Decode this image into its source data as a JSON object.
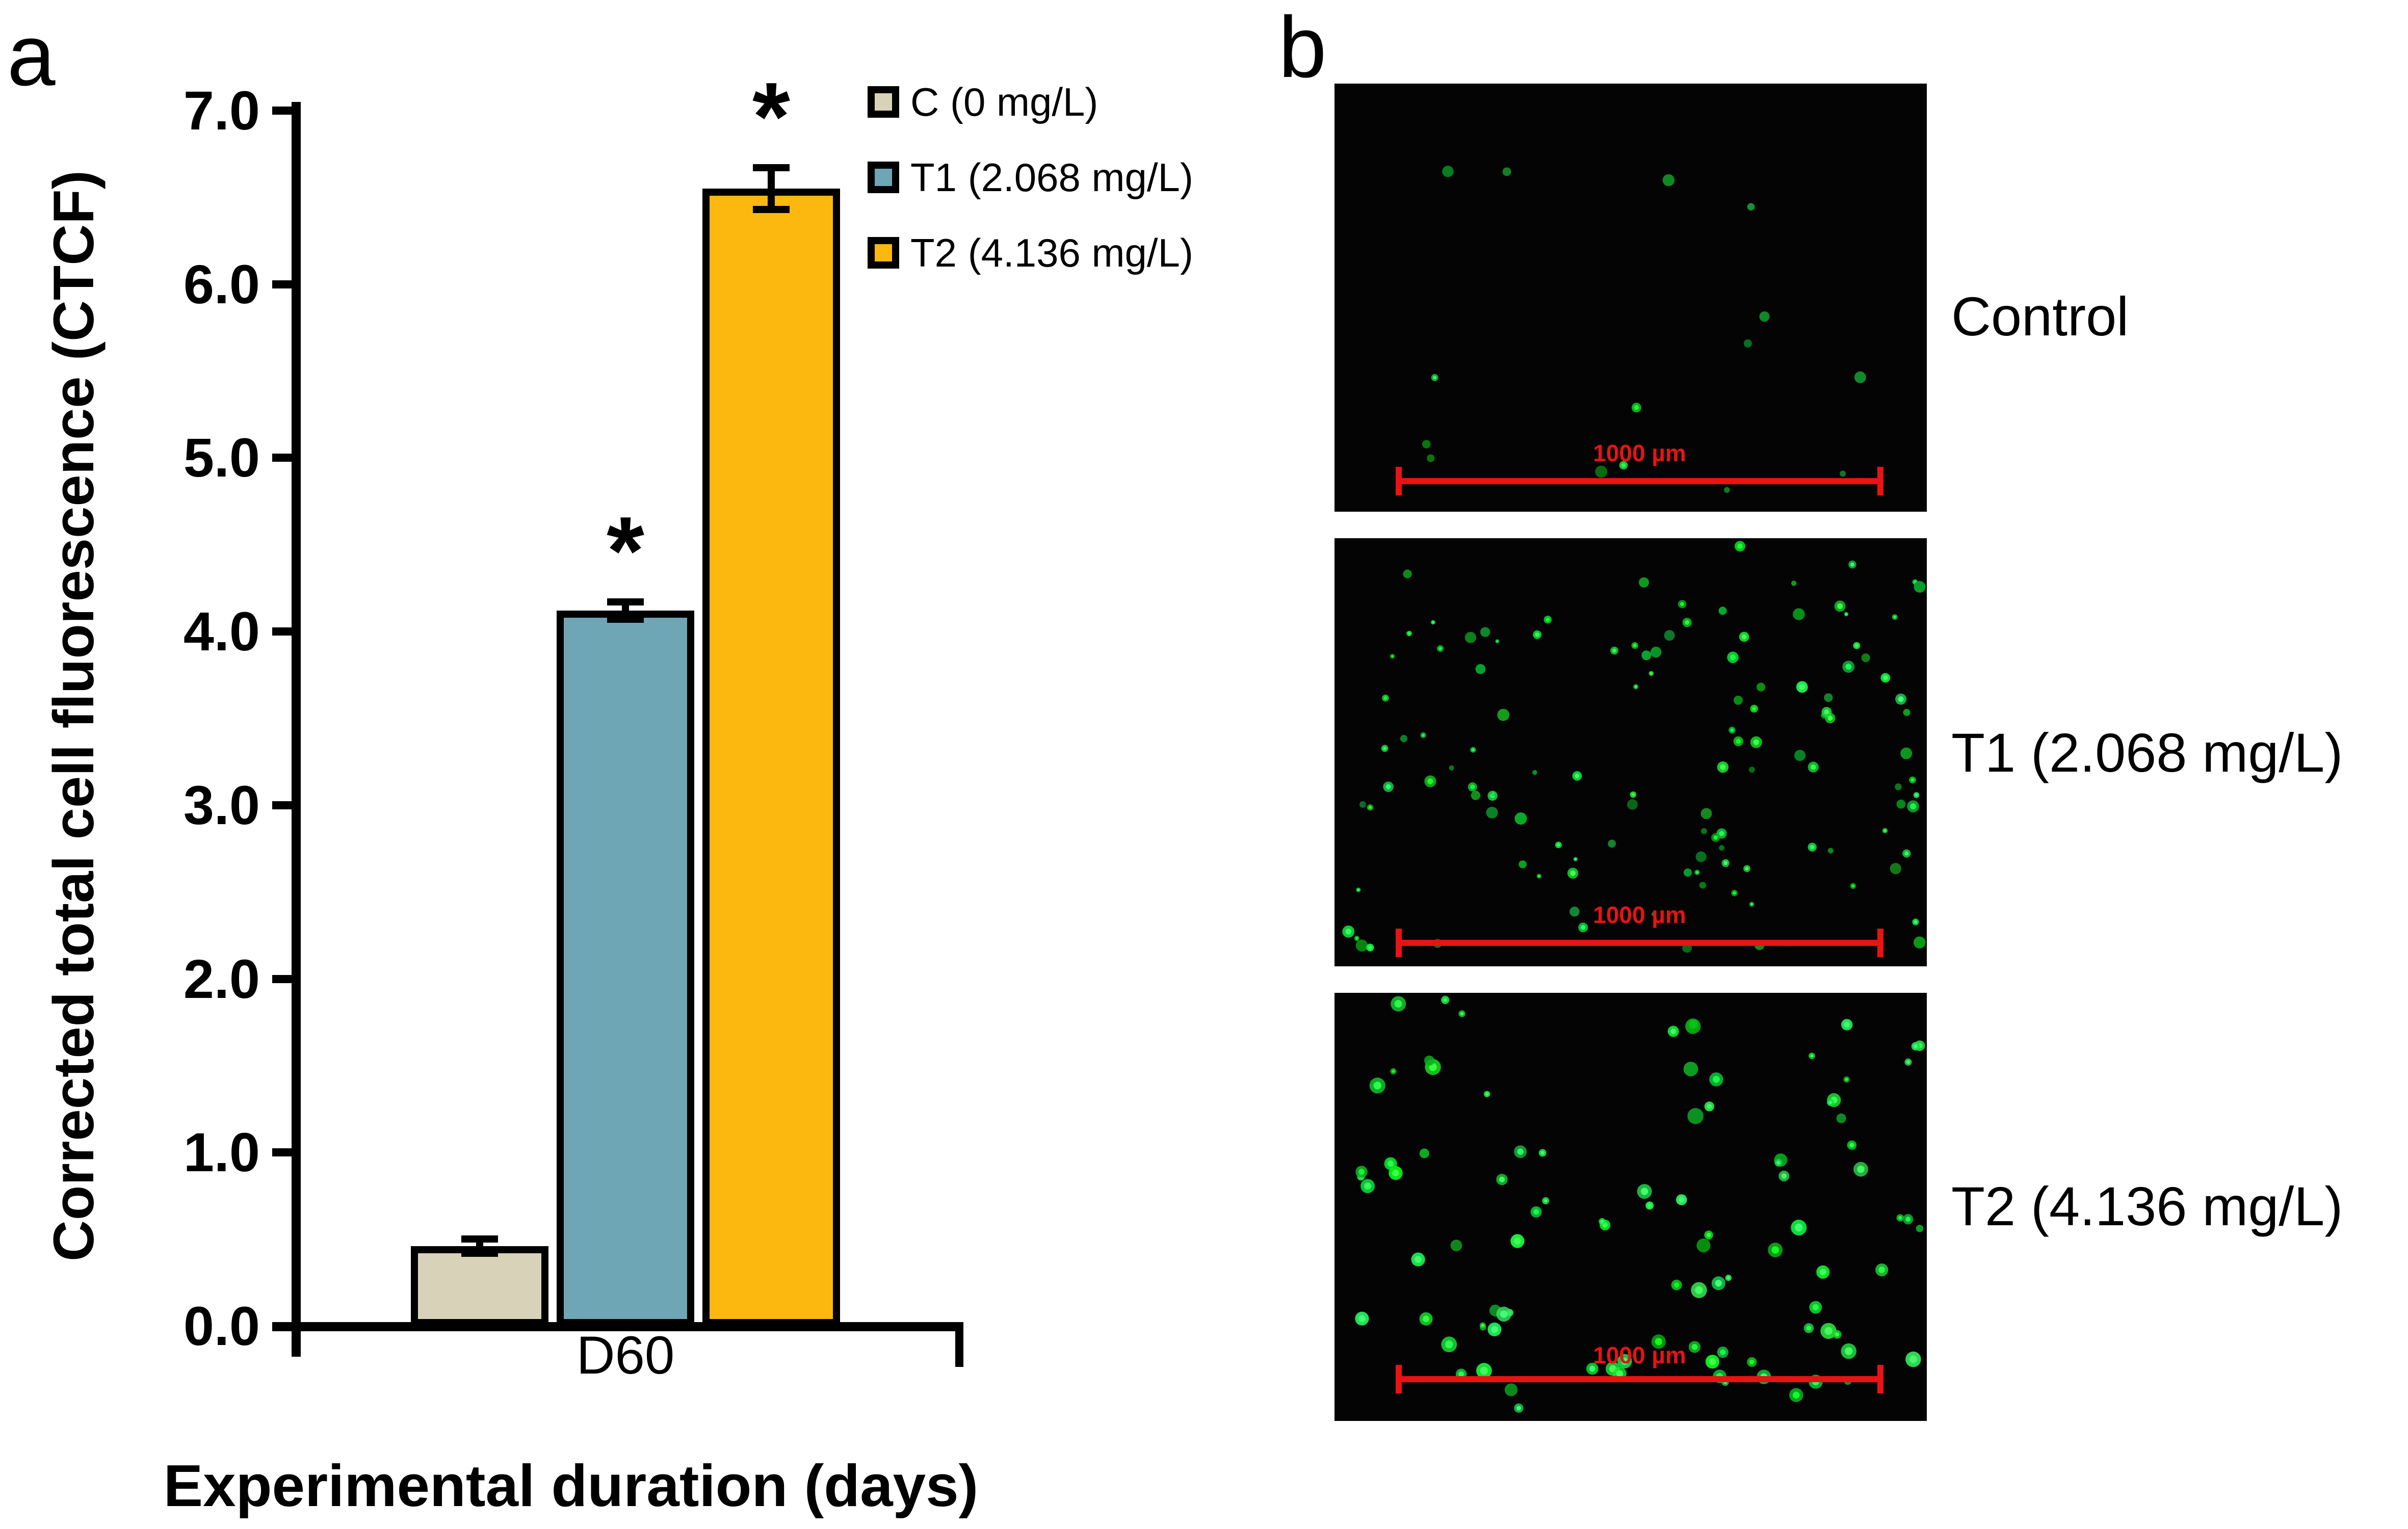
{
  "figure": {
    "panel_a_letter": "a",
    "panel_b_letter": "b"
  },
  "chart_data": {
    "type": "bar",
    "title": "",
    "xlabel": "Experimental duration (days)",
    "ylabel": "Corrected total cell fluorescence (CTCF)",
    "categories": [
      "D60"
    ],
    "series": [
      {
        "name": "C (0 mg/L)",
        "values": [
          0.46
        ],
        "errors": [
          0.04
        ],
        "significance": [
          ""
        ],
        "color": "#d8d3b8"
      },
      {
        "name": "T1 (2.068 mg/L)",
        "values": [
          4.12
        ],
        "errors": [
          0.05
        ],
        "significance": [
          "*"
        ],
        "color": "#6ea6b6"
      },
      {
        "name": "T2 (4.136 mg/L)",
        "values": [
          6.55
        ],
        "errors": [
          0.12
        ],
        "significance": [
          "*"
        ],
        "color": "#fcb80e"
      }
    ],
    "ylim": [
      0,
      7
    ],
    "ytick_step": 1.0,
    "yticks": [
      "0.0",
      "1.0",
      "2.0",
      "3.0",
      "4.0",
      "5.0",
      "6.0",
      "7.0"
    ],
    "grid": false,
    "legend_position": "top-right",
    "bar_border_color": "#000000",
    "error_bar_color": "#000000"
  },
  "panel_b": {
    "micrographs": [
      {
        "label": "Control",
        "scalebar_label": "1000 µm",
        "dot_count": 15,
        "dot_style": "dim-sparse"
      },
      {
        "label": "T1 (2.068 mg/L)",
        "scalebar_label": "1000 µm",
        "dot_count": 120,
        "dot_style": "small-dense"
      },
      {
        "label": "T2 (4.136 mg/L)",
        "scalebar_label": "1000 µm",
        "dot_count": 95,
        "dot_style": "bright-medium"
      }
    ],
    "scalebar_color": "#e81313",
    "dot_color_base": "green"
  }
}
